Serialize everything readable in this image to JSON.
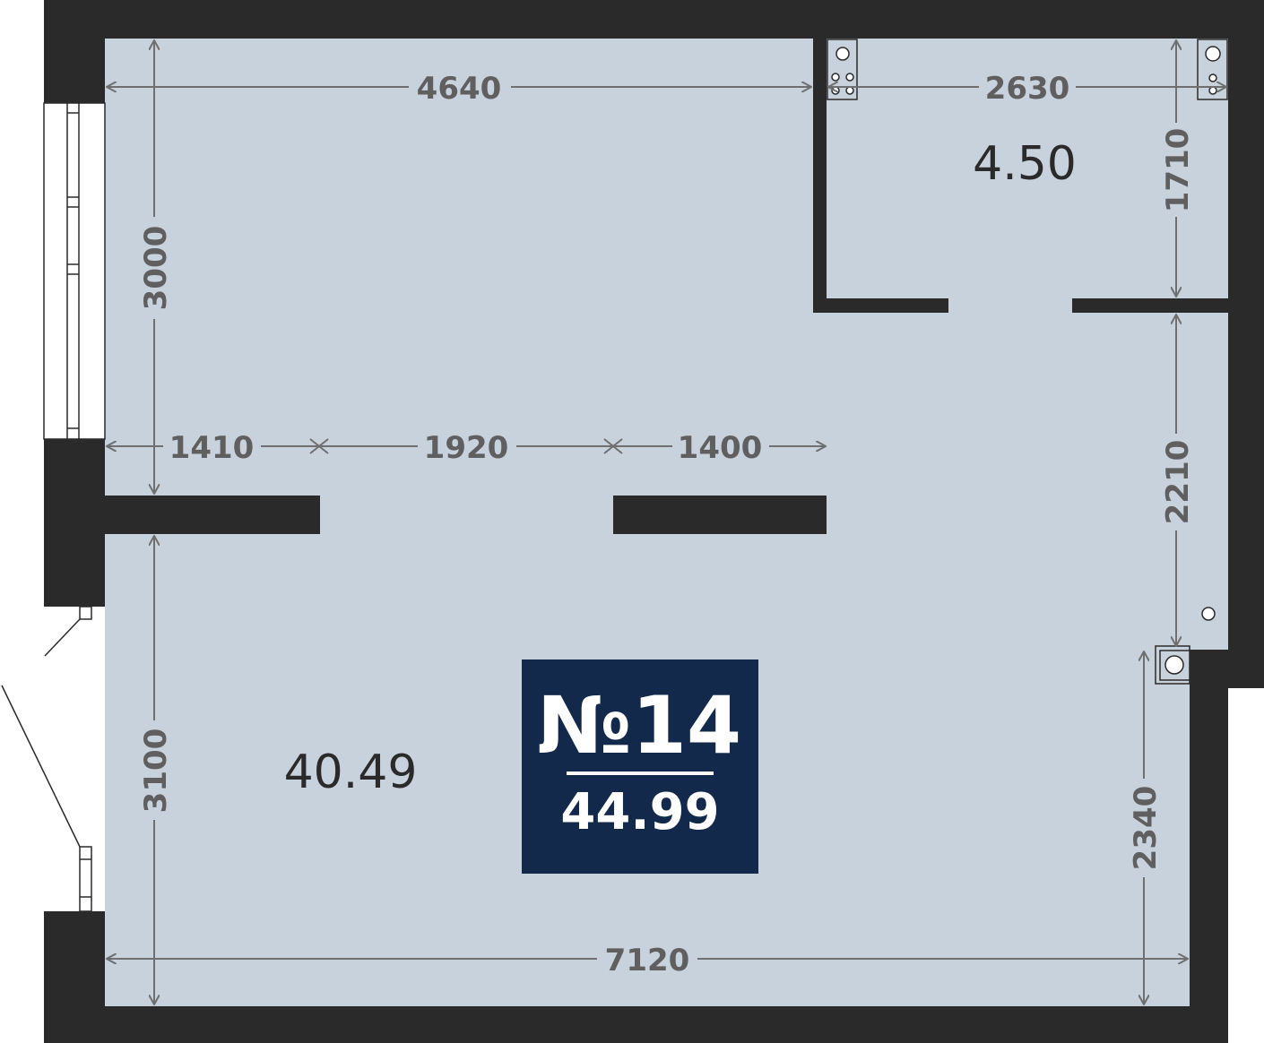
{
  "apartment": {
    "number_label": "№14",
    "total_area": "44.99",
    "badge_color": "#13294b"
  },
  "rooms": {
    "main_area": "40.49",
    "bathroom_area": "4.50"
  },
  "dimensions": {
    "top_main": "4640",
    "top_bath": "2630",
    "left_upper": "3000",
    "left_lower": "3100",
    "mid_1": "1410",
    "mid_2": "1920",
    "mid_3": "1400",
    "right_bath": "1710",
    "right_mid": "2210",
    "right_lower": "2340",
    "bottom": "7120"
  },
  "colors": {
    "wall": "#2a2a2a",
    "floor": "#c8d2dd",
    "dimension": "#6f6f6f"
  }
}
